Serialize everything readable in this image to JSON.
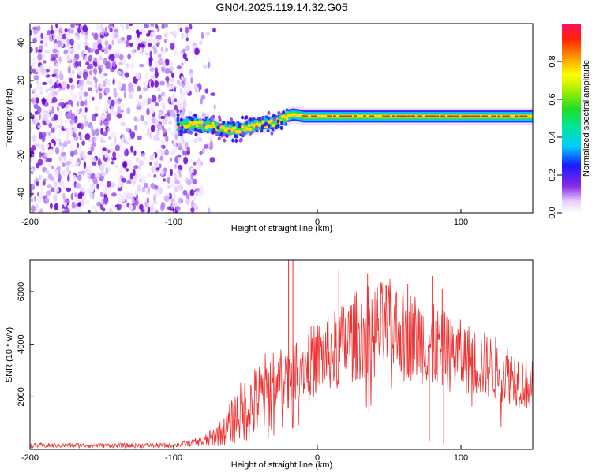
{
  "title": "GN04.2025.119.14.32.G05",
  "chart_data": [
    {
      "type": "heatmap",
      "xlabel": "Height of straight line (km)",
      "ylabel": "Frequency (Hz)",
      "xlim": [
        -200,
        150
      ],
      "ylim": [
        -50,
        50
      ],
      "x_ticks": [
        "-200",
        "-100",
        "0",
        "100"
      ],
      "y_ticks": [
        "-40",
        "-20",
        "0",
        "20",
        "40"
      ],
      "colorbar": {
        "label": "Normalized spectral amplitude",
        "range": [
          0,
          1
        ],
        "ticks": [
          "0.0",
          "0.2",
          "0.4",
          "0.6",
          "0.8"
        ]
      },
      "ridge": [
        {
          "x": -95,
          "y": -4
        },
        {
          "x": -85,
          "y": -3
        },
        {
          "x": -75,
          "y": -4
        },
        {
          "x": -65,
          "y": -6
        },
        {
          "x": -55,
          "y": -6
        },
        {
          "x": -45,
          "y": -4
        },
        {
          "x": -35,
          "y": -3
        },
        {
          "x": -28,
          "y": -2
        },
        {
          "x": -25,
          "y": 0
        },
        {
          "x": -18,
          "y": 2
        },
        {
          "x": -10,
          "y": 1
        },
        {
          "x": 0,
          "y": 1
        },
        {
          "x": 50,
          "y": 1
        },
        {
          "x": 100,
          "y": 1
        },
        {
          "x": 150,
          "y": 1
        }
      ],
      "noise_region_x": [
        -200,
        -75
      ]
    },
    {
      "type": "line",
      "xlabel": "Height of straight line (km)",
      "ylabel": "SNR (10 * v/v)",
      "xlim": [
        -200,
        150
      ],
      "ylim": [
        0,
        7200
      ],
      "x_ticks": [
        "-200",
        "-100",
        "0",
        "100"
      ],
      "y_ticks": [
        "2000",
        "4000",
        "6000"
      ],
      "series": [
        {
          "color": "#ee3333",
          "envelope": [
            {
              "x": -200,
              "y": 150
            },
            {
              "x": -100,
              "y": 150
            },
            {
              "x": -80,
              "y": 300
            },
            {
              "x": -65,
              "y": 800
            },
            {
              "x": -55,
              "y": 1600
            },
            {
              "x": -40,
              "y": 2200
            },
            {
              "x": -25,
              "y": 3000
            },
            {
              "x": -10,
              "y": 3500
            },
            {
              "x": 10,
              "y": 4000
            },
            {
              "x": 30,
              "y": 4800
            },
            {
              "x": 50,
              "y": 5000
            },
            {
              "x": 70,
              "y": 4600
            },
            {
              "x": 90,
              "y": 4000
            },
            {
              "x": 110,
              "y": 3600
            },
            {
              "x": 130,
              "y": 3200
            },
            {
              "x": 150,
              "y": 2600
            }
          ],
          "spikes": [
            {
              "x": -20,
              "y": 7200
            },
            {
              "x": -17,
              "y": 7200
            },
            {
              "x": 15,
              "y": 6800
            },
            {
              "x": 35,
              "y": 6700
            },
            {
              "x": 63,
              "y": 6300
            },
            {
              "x": 80,
              "y": 6600
            },
            {
              "x": 87,
              "y": 6100
            }
          ],
          "dips": [
            {
              "x": 78,
              "y": 300
            },
            {
              "x": 88,
              "y": 200
            }
          ]
        }
      ]
    }
  ]
}
